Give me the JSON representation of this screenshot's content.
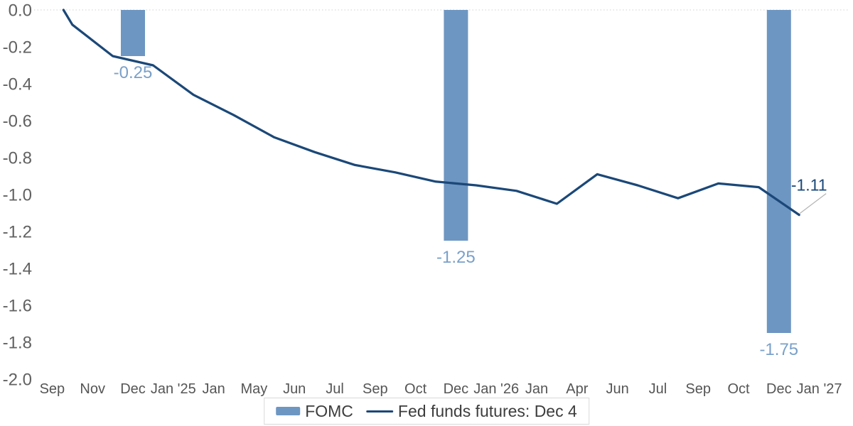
{
  "colors": {
    "bar": "#6e96c2",
    "bar_data_label": "#7aa0c9",
    "line": "#1b4878",
    "end_label": "#1b4878",
    "leader_line": "#b3b3b3",
    "y_tick_label": "#616161",
    "x_tick_label": "#555555",
    "zero_gridline": "#d9d9d9",
    "legend_border": "#d9d9d9",
    "legend_text": "#3d3d3d"
  },
  "legend": {
    "items": [
      {
        "label": "FOMC",
        "swatch": "bar"
      },
      {
        "label": "Fed funds futures: Dec 4",
        "swatch": "line"
      }
    ]
  },
  "chart_data": {
    "type": "bar",
    "subtype": "combo bar + line, negative values hanging from zero line",
    "title": "",
    "xlabel": "",
    "ylabel": "",
    "ylim": [
      -2.0,
      0.0
    ],
    "grid": "dotted gridline at 0.0 only",
    "legend_position": "bottom center, boxed",
    "categories": [
      "Sep",
      "Nov",
      "Dec",
      "Jan '25",
      "Jan",
      "May",
      "Jun",
      "Jul",
      "Sep",
      "Oct",
      "Dec",
      "Jan '26",
      "Jan",
      "Apr",
      "Jun",
      "Jul",
      "Sep",
      "Oct",
      "Dec",
      "Jan '27"
    ],
    "y_ticks": [
      {
        "value": 0.0,
        "label": "0.0"
      },
      {
        "value": -0.2,
        "label": "-0.2"
      },
      {
        "value": -0.4,
        "label": "-0.4"
      },
      {
        "value": -0.6,
        "label": "-0.6"
      },
      {
        "value": -0.8,
        "label": "-0.8"
      },
      {
        "value": -1.0,
        "label": "-1.0"
      },
      {
        "value": -1.2,
        "label": "-1.2"
      },
      {
        "value": -1.4,
        "label": "-1.4"
      },
      {
        "value": -1.6,
        "label": "-1.6"
      },
      {
        "value": -1.8,
        "label": "-1.8"
      },
      {
        "value": -2.0,
        "label": "-2.0"
      }
    ],
    "series": [
      {
        "name": "FOMC",
        "type": "bar",
        "points": [
          {
            "category": "Dec",
            "category_index": 2,
            "value": -0.25,
            "data_label": "-0.25"
          },
          {
            "category": "Dec",
            "category_index": 10,
            "value": -1.25,
            "data_label": "-1.25"
          },
          {
            "category": "Dec",
            "category_index": 18,
            "value": -1.75,
            "data_label": "-1.75"
          }
        ]
      },
      {
        "name": "Fed funds futures: Dec 4",
        "type": "line",
        "end_label": "-1.11",
        "points": [
          [
            0.78,
            0.0
          ],
          [
            1,
            -0.08
          ],
          [
            2,
            -0.25
          ],
          [
            3,
            -0.3
          ],
          [
            4,
            -0.46
          ],
          [
            5,
            -0.57
          ],
          [
            6,
            -0.69
          ],
          [
            7,
            -0.77
          ],
          [
            8,
            -0.84
          ],
          [
            9,
            -0.88
          ],
          [
            10,
            -0.93
          ],
          [
            11,
            -0.95
          ],
          [
            12,
            -0.98
          ],
          [
            13,
            -1.05
          ],
          [
            14,
            -0.89
          ],
          [
            15,
            -0.95
          ],
          [
            16,
            -1.02
          ],
          [
            17,
            -0.94
          ],
          [
            18,
            -0.96
          ],
          [
            19,
            -1.11
          ]
        ]
      }
    ]
  }
}
